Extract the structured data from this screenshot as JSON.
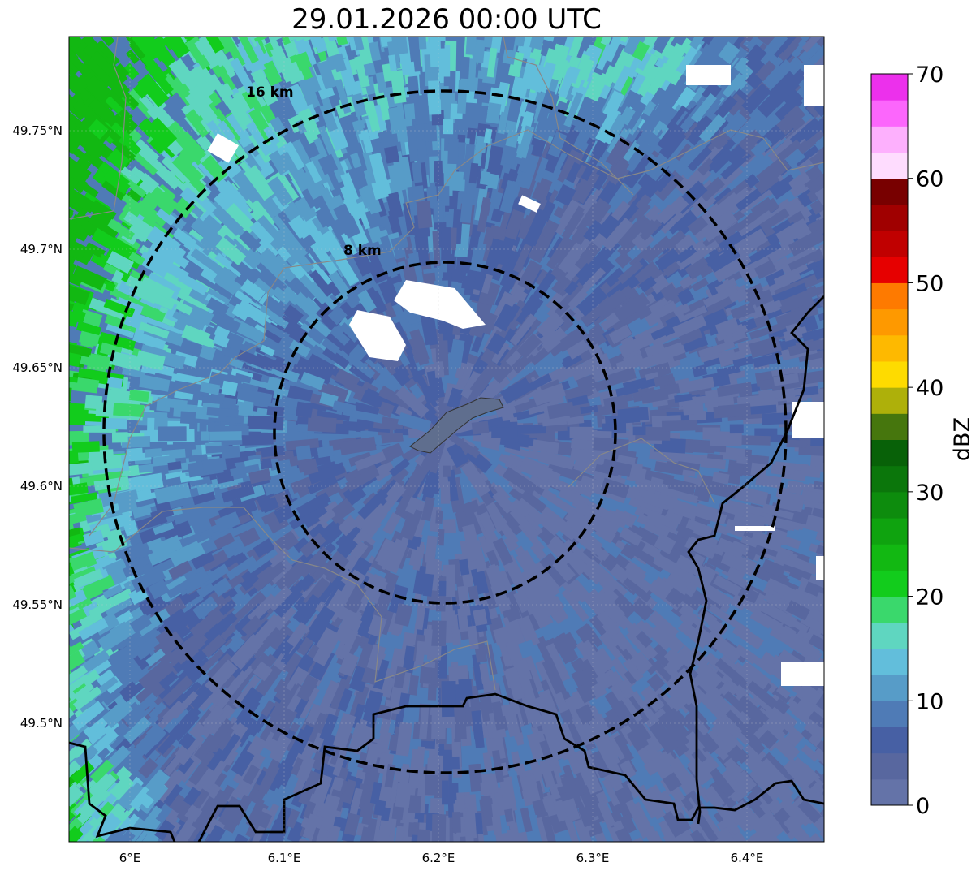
{
  "title": "29.01.2026 00:00 UTC",
  "x_ticks": [
    "6°E",
    "6.1°E",
    "6.2°E",
    "6.3°E",
    "6.4°E"
  ],
  "y_ticks": [
    "49.75°N",
    "49.7°N",
    "49.65°N",
    "49.6°N",
    "49.55°N",
    "49.5°N"
  ],
  "range_rings": [
    "16 km",
    "8 km"
  ],
  "colorbar": {
    "label": "dBZ",
    "ticks": [
      "0",
      "10",
      "20",
      "30",
      "40",
      "50",
      "60",
      "70"
    ],
    "colors": [
      "#6473a8",
      "#58679f",
      "#4760a4",
      "#4f7bb6",
      "#579cc8",
      "#62bedb",
      "#5fd6c0",
      "#3ad86c",
      "#12cc1c",
      "#12b812",
      "#0fa30f",
      "#0d8c0d",
      "#0b760b",
      "#086108",
      "#46760d",
      "#aeb00a",
      "#fedb00",
      "#feb900",
      "#fe9900",
      "#fe7a00",
      "#e60000",
      "#c00000",
      "#a00000",
      "#780000",
      "#fedcfe",
      "#fdb0fd",
      "#fc66fc",
      "#ec30ec"
    ]
  }
}
